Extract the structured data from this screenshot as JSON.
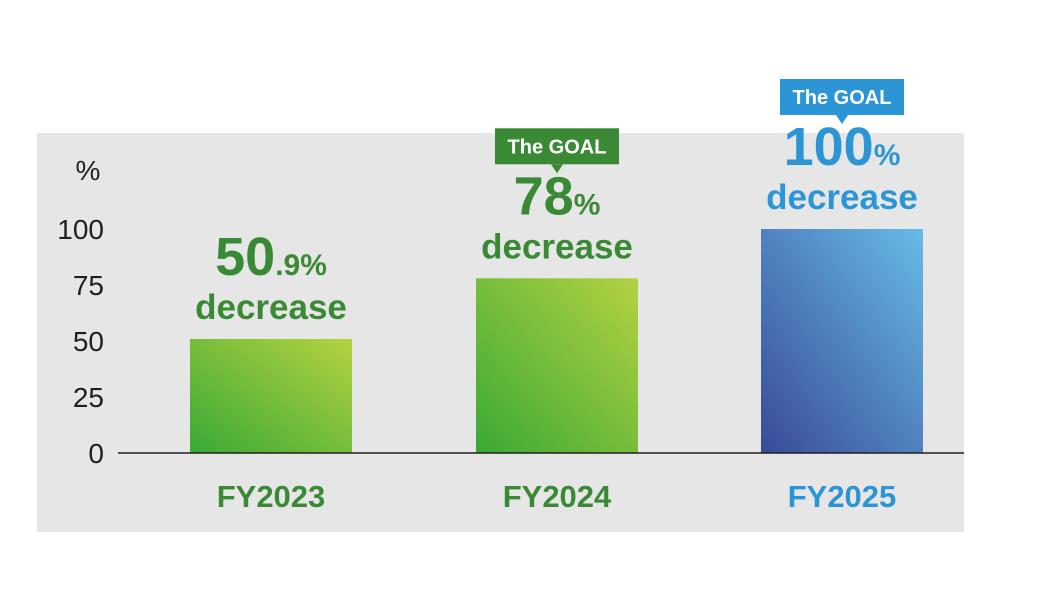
{
  "chart_data": {
    "type": "bar",
    "ylabel": "%",
    "ylim": [
      0,
      100
    ],
    "yticks": [
      "0",
      "25",
      "50",
      "75",
      "100"
    ],
    "categories": [
      "FY2023",
      "FY2024",
      "FY2025"
    ],
    "values": [
      50.9,
      78,
      100
    ],
    "data_labels": [
      {
        "main": "50",
        "suffix": ".9%",
        "sub": "decrease",
        "goal": ""
      },
      {
        "main": "78",
        "suffix": "%",
        "sub": "decrease",
        "goal": "The GOAL"
      },
      {
        "main": "100",
        "suffix": "%",
        "sub": "decrease",
        "goal": "The GOAL"
      }
    ],
    "colors": {
      "panel_bg": "#e6e6e6",
      "axis": "#231f20",
      "label_green": "#3a8a35",
      "label_blue": "#2b95d6",
      "green_dark": "#3aa935",
      "green_light": "#b4d241",
      "blue_dark": "#3a4a98",
      "blue_light": "#66bbe8"
    }
  }
}
